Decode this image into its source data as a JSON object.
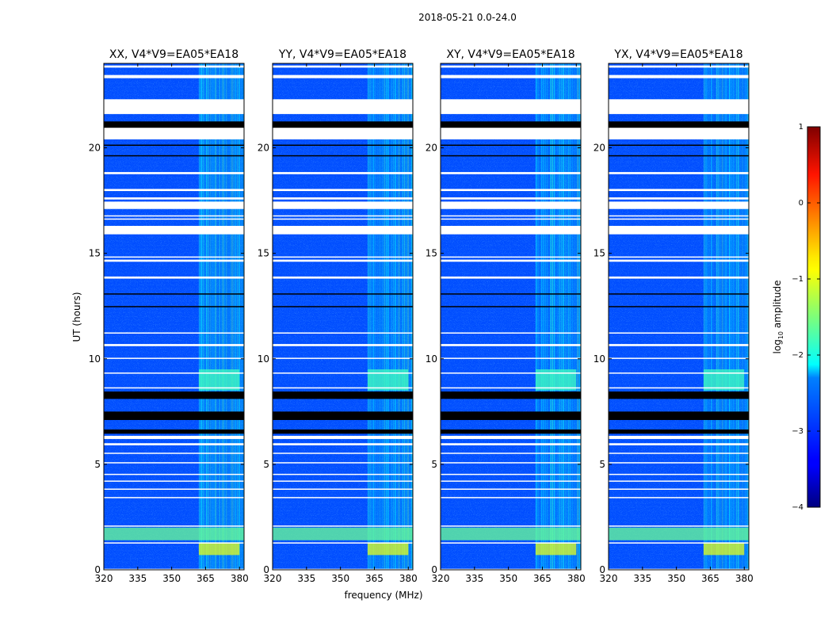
{
  "suptitle": "2018-05-21 0.0-24.0",
  "xlabel": "frequency (MHz)",
  "ylabel": "UT (hours)",
  "colorbar": {
    "label": "log10 amplitude",
    "label_base": "log",
    "label_sub": "10",
    "label_rest": " amplitude",
    "ticks": [
      "1",
      "0",
      "−1",
      "−2",
      "−3",
      "−4"
    ],
    "range": [
      -4,
      1
    ],
    "colormap": "jet"
  },
  "chart_data": {
    "type": "heatmap",
    "title": "2018-05-21 0.0-24.0",
    "xlabel": "frequency (MHz)",
    "ylabel": "UT (hours)",
    "xlim": [
      320,
      382
    ],
    "ylim": [
      0,
      24
    ],
    "xticks": [
      "320",
      "335",
      "350",
      "365",
      "380"
    ],
    "yticks": [
      "0",
      "5",
      "10",
      "15",
      "20"
    ],
    "value_label": "log10 amplitude",
    "value_range": [
      -4,
      1
    ],
    "panels": [
      {
        "title": "XX, V4*V9=EA05*EA18",
        "polarization": "XX",
        "baseline": "V4*V9=EA05*EA18"
      },
      {
        "title": "YY, V4*V9=EA05*EA18",
        "polarization": "YY",
        "baseline": "V4*V9=EA05*EA18"
      },
      {
        "title": "XY, V4*V9=EA05*EA18",
        "polarization": "XY",
        "baseline": "V4*V9=EA05*EA18"
      },
      {
        "title": "YX, V4*V9=EA05*EA18",
        "polarization": "YX",
        "baseline": "V4*V9=EA05*EA18"
      }
    ],
    "background_level": -3.0,
    "rfi_band_mhz": [
      362,
      382
    ],
    "rfi_band_level": -2.2,
    "strong_rfi": [
      {
        "ut": [
          0.7,
          1.3
        ],
        "freq": [
          362,
          380
        ],
        "level": -1.0
      },
      {
        "ut": [
          1.4,
          2.0
        ],
        "freq": [
          320,
          382
        ],
        "level": -1.6
      },
      {
        "ut": [
          8.5,
          9.5
        ],
        "freq": [
          362,
          380
        ],
        "level": -1.8
      }
    ],
    "flagged_gaps_ut": [
      [
        0.0,
        0.05
      ],
      [
        1.25,
        1.3
      ],
      [
        2.05,
        2.1
      ],
      [
        3.4,
        3.45
      ],
      [
        3.8,
        3.85
      ],
      [
        4.2,
        4.23
      ],
      [
        4.5,
        4.55
      ],
      [
        5.05,
        5.1
      ],
      [
        5.5,
        5.55
      ],
      [
        5.9,
        6.0
      ],
      [
        6.2,
        6.35
      ],
      [
        8.6,
        8.65
      ],
      [
        9.3,
        9.35
      ],
      [
        10.0,
        10.05
      ],
      [
        10.6,
        10.7
      ],
      [
        11.2,
        11.25
      ],
      [
        13.8,
        13.9
      ],
      [
        14.6,
        14.7
      ],
      [
        14.8,
        14.85
      ],
      [
        15.9,
        16.3
      ],
      [
        16.6,
        16.65
      ],
      [
        16.75,
        16.8
      ],
      [
        17.1,
        17.45
      ],
      [
        17.55,
        17.65
      ],
      [
        17.95,
        18.05
      ],
      [
        18.75,
        18.85
      ],
      [
        20.4,
        21.05
      ],
      [
        21.6,
        22.3
      ],
      [
        23.3,
        23.45
      ],
      [
        23.8,
        23.9
      ]
    ],
    "no_data_ut": [
      [
        6.45,
        6.65
      ],
      [
        7.1,
        7.5
      ],
      [
        8.1,
        8.45
      ],
      [
        20.95,
        21.25
      ],
      [
        12.45,
        12.5
      ],
      [
        13.05,
        13.1
      ],
      [
        19.6,
        19.65
      ],
      [
        20.1,
        20.15
      ]
    ]
  }
}
